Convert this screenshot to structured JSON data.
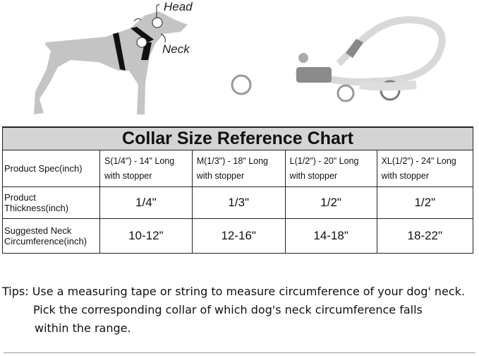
{
  "illustration": {
    "labels": {
      "head": "Head",
      "neck": "Neck"
    }
  },
  "chart": {
    "title": "Collar Size Reference Chart",
    "rows": [
      {
        "header": "Product Spec(inch)",
        "cells": [
          "S(1/4\") - 14\" Long with stopper",
          "M(1/3\") - 18\" Long with stopper",
          "L(1/2\") - 20\" Long with stopper",
          "XL(1/2\") - 24\" Long with stopper"
        ]
      },
      {
        "header": "Product Thickness(inch)",
        "cells": [
          "1/4\"",
          "1/3\"",
          "1/2\"",
          "1/2\""
        ]
      },
      {
        "header": "Suggested Neck Circumference(inch)",
        "cells": [
          "10-12\"",
          "12-16\"",
          "14-18\"",
          "18-22\""
        ]
      }
    ]
  },
  "tips": {
    "label": "Tips:",
    "line1": "Use a measuring tape or string to measure circumference of your dog' neck.",
    "line2": "Pick the corresponding collar of which dog's neck circumference falls",
    "line3": "within the range."
  }
}
